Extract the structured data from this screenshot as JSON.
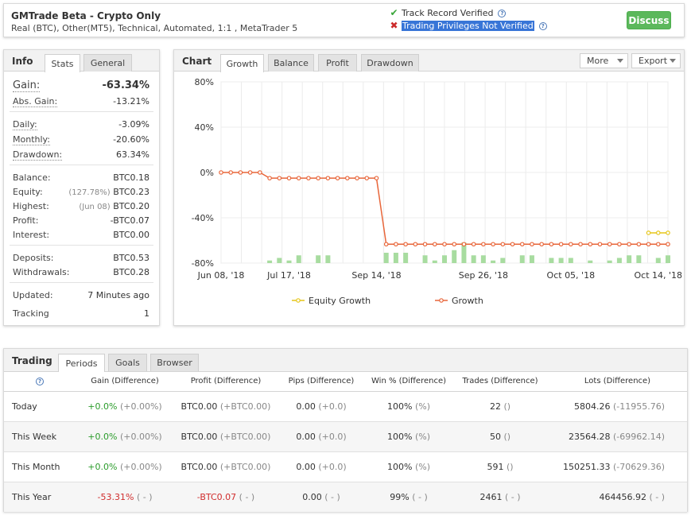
{
  "header": {
    "title": "GMTrade Beta - Crypto Only",
    "subtitle": "Real (BTC), Other(MT5), Technical, Automated, 1:1 , MetaTrader 5",
    "track_record": "Track Record Verified",
    "trading_privileges": "Trading Privileges Not Verified",
    "discuss_label": "Discuss"
  },
  "info": {
    "label": "Info",
    "tabs": [
      "Stats",
      "General"
    ],
    "gain_label": "Gain:",
    "gain_value": "-63.34%",
    "abs_gain_label": "Abs. Gain:",
    "abs_gain_value": "-13.21%",
    "daily_label": "Daily:",
    "daily_value": "-3.09%",
    "monthly_label": "Monthly:",
    "monthly_value": "-20.60%",
    "drawdown_label": "Drawdown:",
    "drawdown_value": "63.34%",
    "balance_label": "Balance:",
    "balance_value": "BTC0.18",
    "equity_label": "Equity:",
    "equity_pct": "(127.78%)",
    "equity_value": "BTC0.23",
    "highest_label": "Highest:",
    "highest_date": "(Jun 08)",
    "highest_value": "BTC0.20",
    "profit_label": "Profit:",
    "profit_value": "-BTC0.07",
    "interest_label": "Interest:",
    "interest_value": "BTC0.00",
    "deposits_label": "Deposits:",
    "deposits_value": "BTC0.53",
    "withdrawals_label": "Withdrawals:",
    "withdrawals_value": "BTC0.28",
    "updated_label": "Updated:",
    "updated_value": "7 Minutes ago",
    "tracking_label": "Tracking",
    "tracking_value": "1"
  },
  "chart_panel": {
    "label": "Chart",
    "tabs": [
      "Growth",
      "Balance",
      "Profit",
      "Drawdown"
    ],
    "more_label": "More",
    "export_label": "Export"
  },
  "chart_data": {
    "type": "line",
    "title": "",
    "xlabel": "",
    "ylabel": "",
    "ylim": [
      -80,
      80
    ],
    "yticks": [
      "80%",
      "40%",
      "0%",
      "-40%",
      "-80%"
    ],
    "xtick_labels": [
      "Jun 08, '18",
      "Jul 17, '18",
      "Sep 14, '18",
      "Sep 26, '18",
      "Oct 05, '18",
      "Oct 14, '18"
    ],
    "x_index_of_ticks": [
      0,
      7,
      16,
      27,
      36,
      45
    ],
    "series": [
      {
        "name": "Growth",
        "color": "#e8663a",
        "values": [
          0,
          0,
          0,
          0,
          0,
          -5,
          -5,
          -5,
          -5,
          -5,
          -5,
          -5,
          -5,
          -5,
          -5,
          -5,
          -5,
          -63.34,
          -63.34,
          -63.34,
          -63.34,
          -63.34,
          -63.34,
          -63.34,
          -63.34,
          -63.34,
          -63.34,
          -63.34,
          -63.34,
          -63.34,
          -63.34,
          -63.34,
          -63.34,
          -63.34,
          -63.34,
          -63.34,
          -63.34,
          -63.34,
          -63.34,
          -63.34,
          -63.34,
          -63.34,
          -63.34,
          -63.34,
          -63.34,
          -63.34,
          -63.34
        ]
      },
      {
        "name": "Equity Growth",
        "color": "#e6c619",
        "values": [
          null,
          null,
          null,
          null,
          null,
          null,
          null,
          null,
          null,
          null,
          null,
          null,
          null,
          null,
          null,
          null,
          null,
          null,
          null,
          null,
          null,
          null,
          null,
          null,
          null,
          null,
          null,
          null,
          null,
          null,
          null,
          null,
          null,
          null,
          null,
          null,
          null,
          null,
          null,
          null,
          null,
          null,
          null,
          null,
          -53.3,
          -53.3,
          -53.3
        ]
      }
    ],
    "volume_bars": [
      0,
      0,
      0,
      0,
      0,
      1,
      2,
      1,
      3,
      0,
      3,
      3,
      0,
      0,
      0,
      0,
      0,
      4,
      4,
      4,
      0,
      3,
      1,
      3,
      5,
      8,
      3,
      3,
      1,
      2,
      0,
      3,
      3,
      0,
      2,
      2,
      2,
      0,
      1,
      0,
      1,
      2,
      3,
      3,
      0,
      2,
      3
    ],
    "legend": [
      "Equity Growth",
      "Growth"
    ],
    "legend_position": "bottom"
  },
  "trading": {
    "label": "Trading",
    "tabs": [
      "Periods",
      "Goals",
      "Browser"
    ],
    "columns": [
      "Gain (Difference)",
      "Profit (Difference)",
      "Pips (Difference)",
      "Win % (Difference)",
      "Trades (Difference)",
      "Lots (Difference)"
    ],
    "rows": [
      {
        "period": "Today",
        "gain": "+0.0%",
        "gain_diff": "(+0.00%)",
        "profit": "BTC0.00",
        "profit_diff": "(+BTC0.00)",
        "pips": "0.00",
        "pips_diff": "(+0.0)",
        "win": "100%",
        "win_diff": "(%)",
        "trades": "22",
        "trades_diff": "()",
        "lots": "5804.26",
        "lots_diff": "(-11955.76)"
      },
      {
        "period": "This Week",
        "gain": "+0.0%",
        "gain_diff": "(+0.00%)",
        "profit": "BTC0.00",
        "profit_diff": "(+BTC0.00)",
        "pips": "0.00",
        "pips_diff": "(+0.0)",
        "win": "100%",
        "win_diff": "(%)",
        "trades": "50",
        "trades_diff": "()",
        "lots": "23564.28",
        "lots_diff": "(-69962.14)"
      },
      {
        "period": "This Month",
        "gain": "+0.0%",
        "gain_diff": "(+0.00%)",
        "profit": "BTC0.00",
        "profit_diff": "(+BTC0.00)",
        "pips": "0.00",
        "pips_diff": "(+0.0)",
        "win": "100%",
        "win_diff": "(%)",
        "trades": "591",
        "trades_diff": "()",
        "lots": "150251.33",
        "lots_diff": "(-70629.36)"
      },
      {
        "period": "This Year",
        "gain": "-53.31%",
        "gain_diff": "( - )",
        "profit": "-BTC0.07",
        "profit_diff": "( - )",
        "pips": "0.00",
        "pips_diff": "( - )",
        "win": "99%",
        "win_diff": "( - )",
        "trades": "2461",
        "trades_diff": "( - )",
        "lots": "464456.92",
        "lots_diff": "( - )"
      }
    ]
  }
}
